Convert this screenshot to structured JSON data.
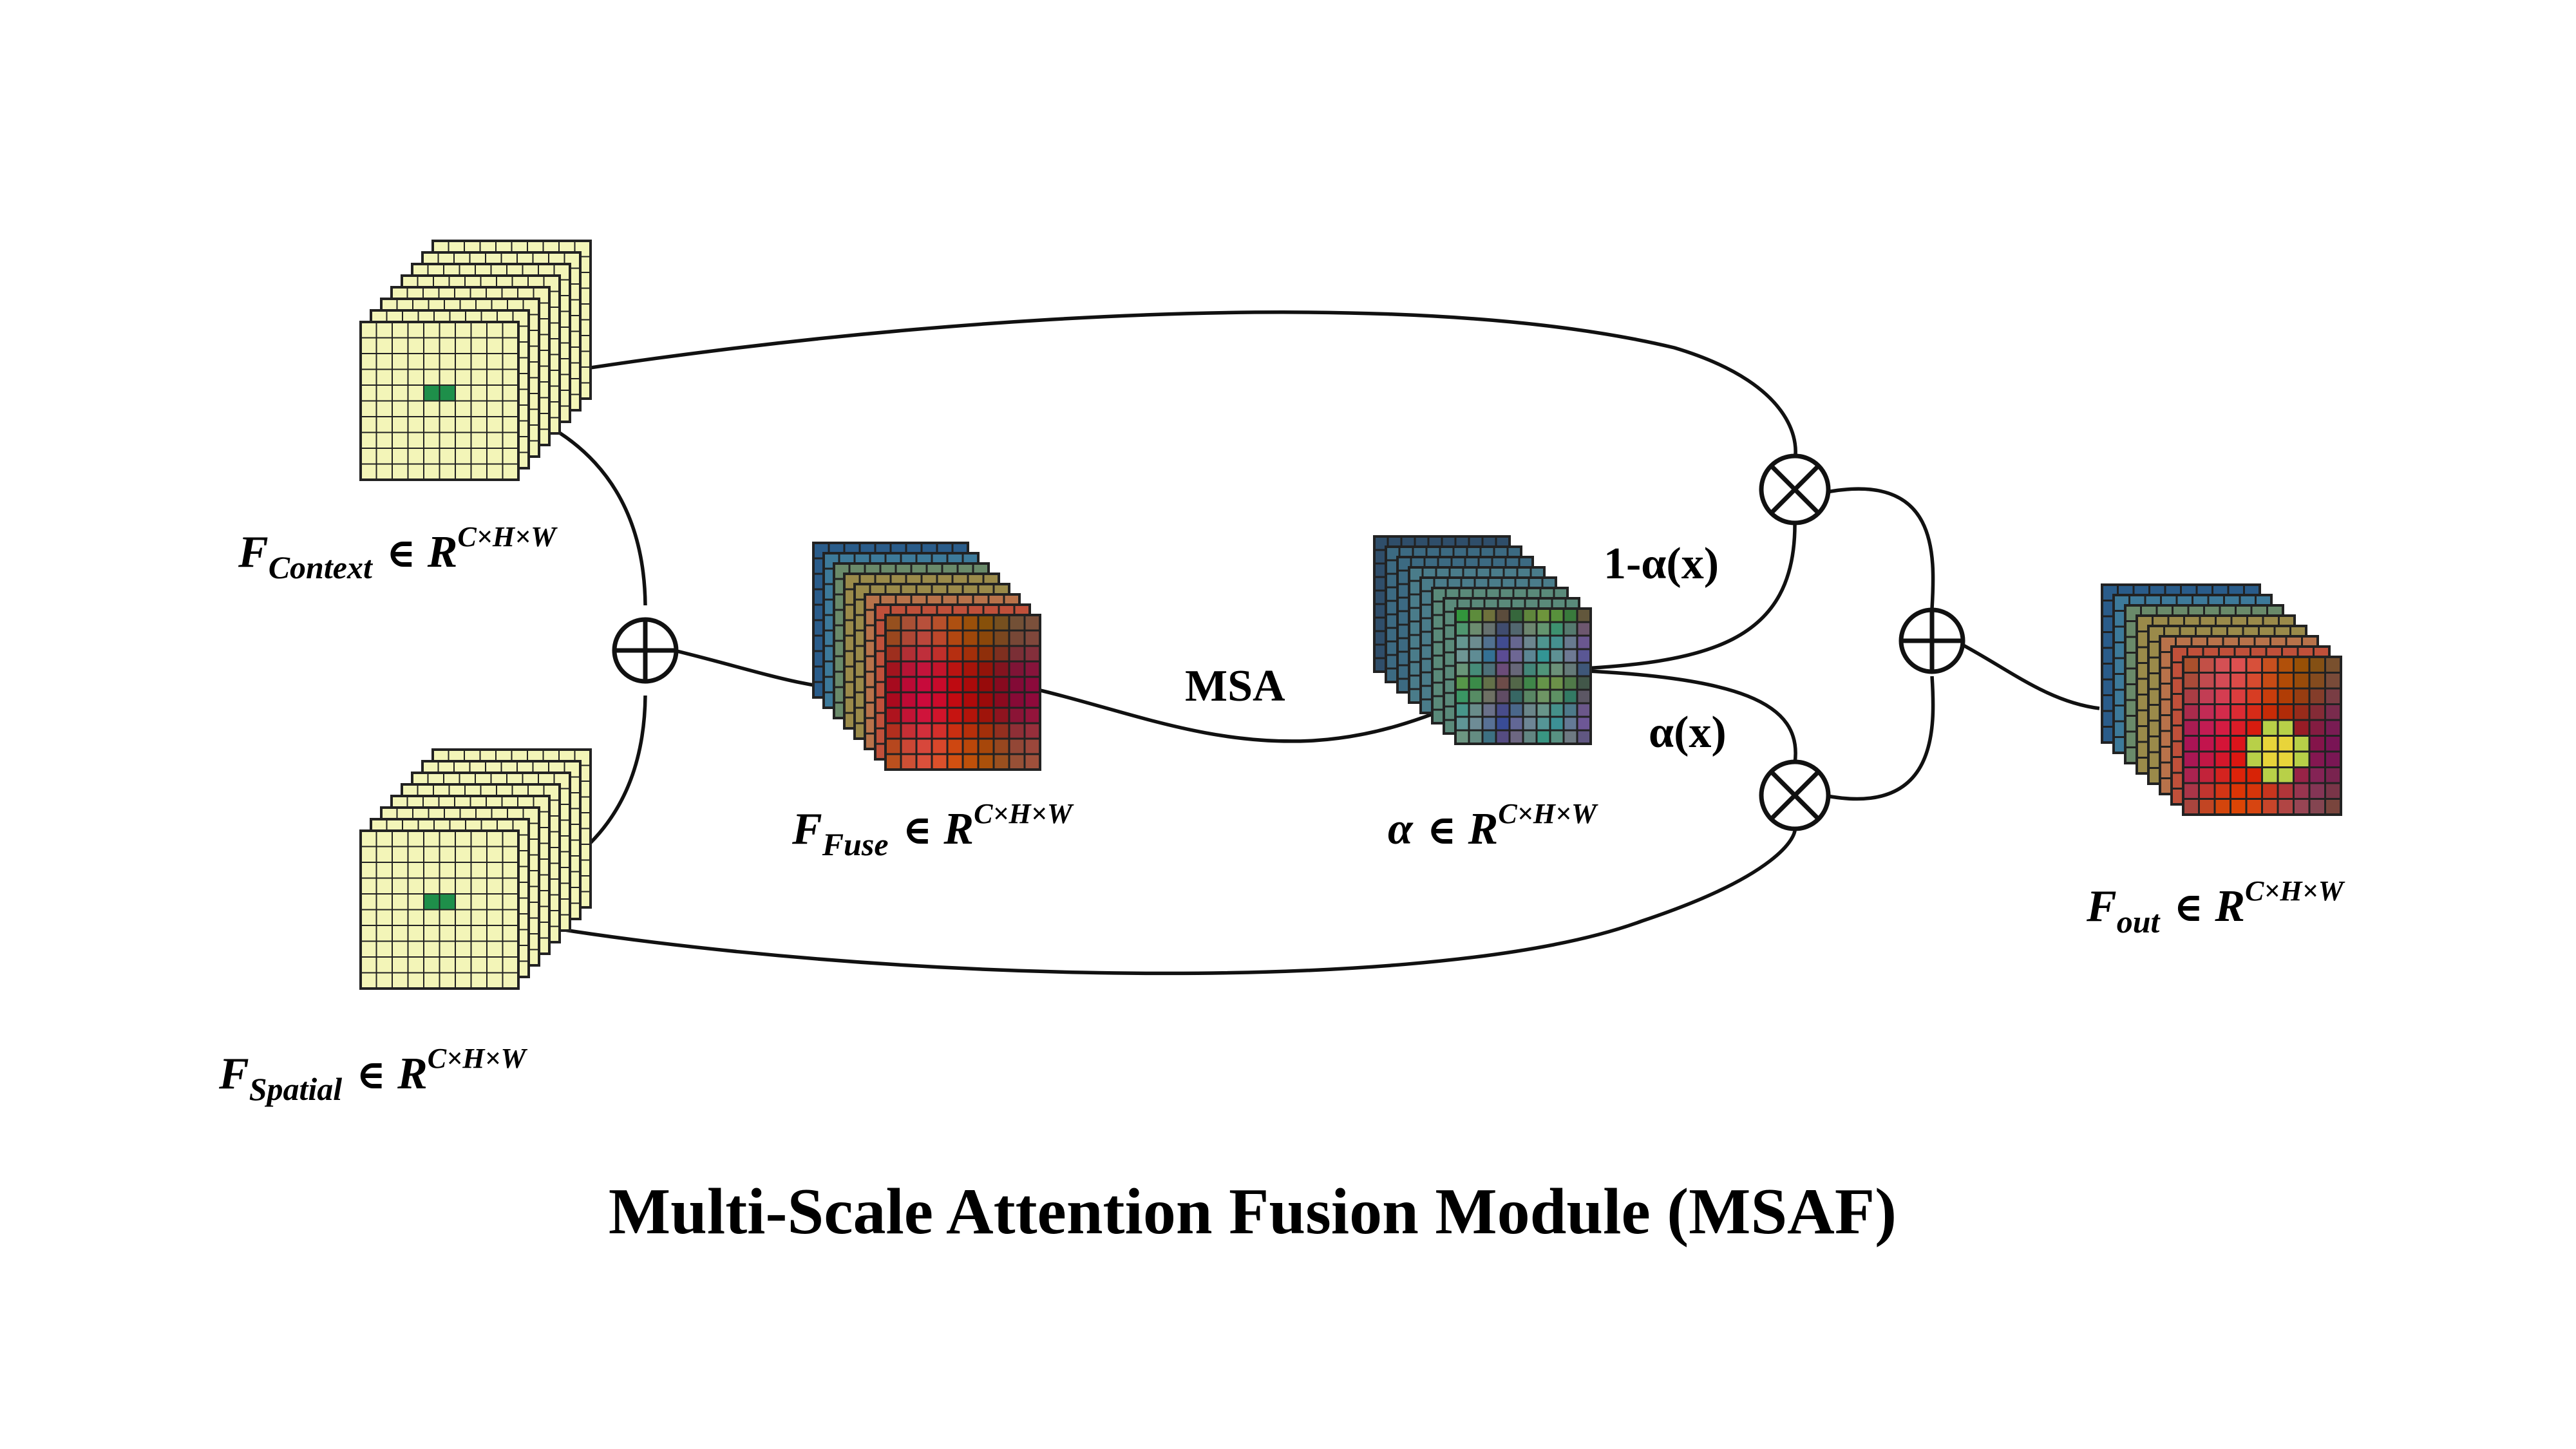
{
  "colors": {
    "yellow_map": "#f3f5b8",
    "yellow_focus": "#1e8f4a",
    "grid_line": "#222222",
    "wire": "#111111"
  },
  "tensors": {
    "context": {
      "symbol": "F",
      "subscript": "Context",
      "space": "R",
      "dims": "C×H×W",
      "in": "∈"
    },
    "spatial": {
      "symbol": "F",
      "subscript": "Spatial",
      "space": "R",
      "dims": "C×H×W",
      "in": "∈"
    },
    "fuse": {
      "symbol": "F",
      "subscript": "Fuse",
      "space": "R",
      "dims": "C×H×W",
      "in": "∈"
    },
    "alpha": {
      "symbol": "α",
      "subscript": "",
      "space": "R",
      "dims": "C×H×W",
      "in": "∈"
    },
    "out": {
      "symbol": "F",
      "subscript": "out",
      "space": "R",
      "dims": "C×H×W",
      "in": "∈"
    }
  },
  "operations": {
    "msa": "MSA",
    "one_minus_alpha": "1-α(x)",
    "alpha_x": "α(x)"
  },
  "operators": {
    "add_left": "plus-circle-icon",
    "mult_top": "times-circle-icon",
    "mult_bottom": "times-circle-icon",
    "add_right": "plus-circle-icon"
  },
  "title": "Multi-Scale Attention Fusion Module (MSAF)"
}
